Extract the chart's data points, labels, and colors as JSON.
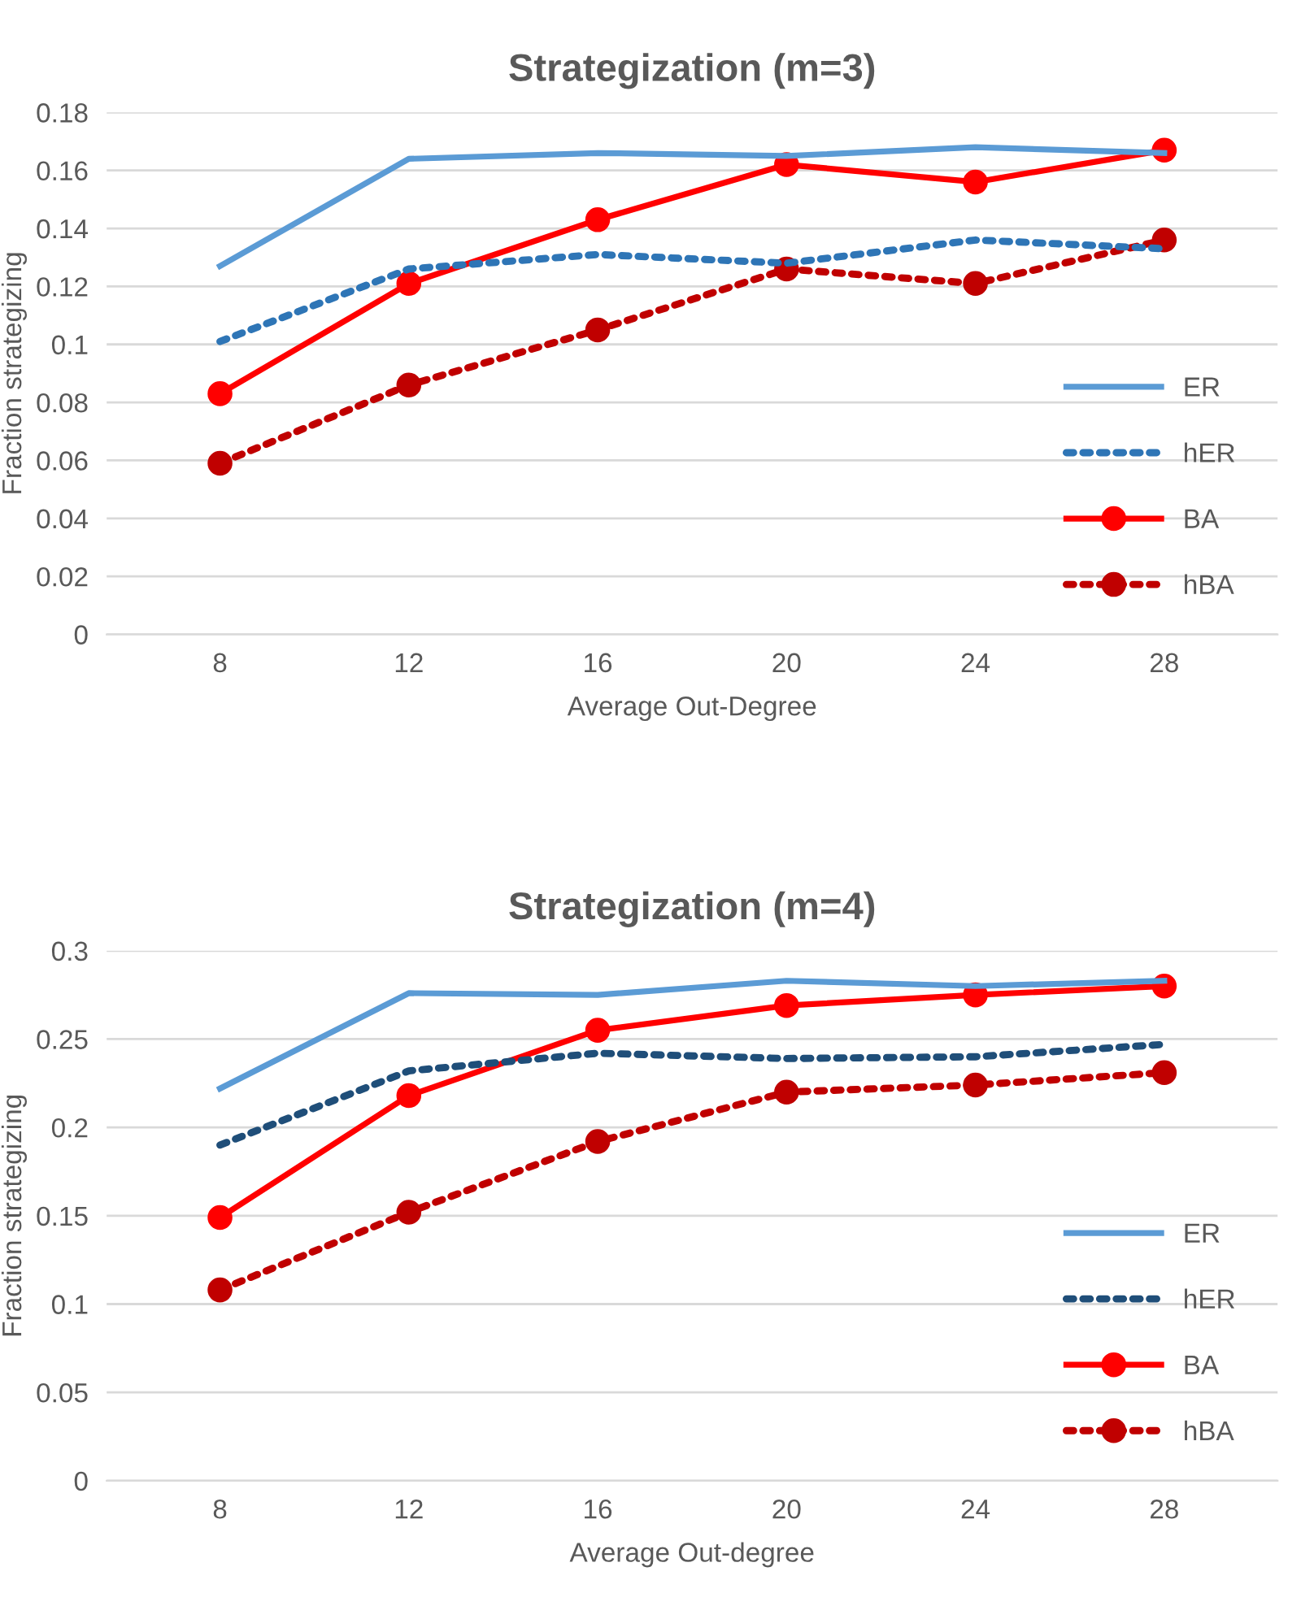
{
  "chart_data": [
    {
      "type": "line",
      "title": "Strategization (m=3)",
      "xlabel": "Average Out-Degree",
      "ylabel": "Fraction strategizing",
      "categories": [
        "8",
        "12",
        "16",
        "20",
        "24",
        "28"
      ],
      "ylim": [
        0,
        0.18
      ],
      "yticks": [
        0,
        0.02,
        0.04,
        0.06,
        0.08,
        0.1,
        0.12,
        0.14,
        0.16,
        0.18
      ],
      "grid": "y",
      "legend": "right",
      "series": [
        {
          "name": "ER",
          "color": "#5b9bd5",
          "line_style": "solid",
          "marker": "none",
          "values": [
            0.127,
            0.164,
            0.166,
            0.165,
            0.168,
            0.166
          ]
        },
        {
          "name": "hER",
          "color": "#2e75b6",
          "line_style": "dotted",
          "marker": "none",
          "values": [
            0.101,
            0.126,
            0.131,
            0.128,
            0.136,
            0.133
          ]
        },
        {
          "name": "BA",
          "color": "#ff0000",
          "line_style": "solid",
          "marker": "circle",
          "values": [
            0.083,
            0.121,
            0.143,
            0.162,
            0.156,
            0.167
          ]
        },
        {
          "name": "hBA",
          "color": "#c00000",
          "line_style": "dotted",
          "marker": "circle",
          "values": [
            0.059,
            0.086,
            0.105,
            0.126,
            0.121,
            0.136
          ]
        }
      ]
    },
    {
      "type": "line",
      "title": "Strategization (m=4)",
      "xlabel": "Average Out-degree",
      "ylabel": "Fraction strategizing",
      "categories": [
        "8",
        "12",
        "16",
        "20",
        "24",
        "28"
      ],
      "ylim": [
        0,
        0.3
      ],
      "yticks": [
        0,
        0.05,
        0.1,
        0.15,
        0.2,
        0.25,
        0.3
      ],
      "grid": "y",
      "legend": "right",
      "series": [
        {
          "name": "ER",
          "color": "#5b9bd5",
          "line_style": "solid",
          "marker": "none",
          "values": [
            0.222,
            0.276,
            0.275,
            0.283,
            0.28,
            0.283
          ]
        },
        {
          "name": "hER",
          "color": "#1f4e79",
          "line_style": "dotted",
          "marker": "none",
          "values": [
            0.19,
            0.232,
            0.242,
            0.239,
            0.24,
            0.247
          ]
        },
        {
          "name": "BA",
          "color": "#ff0000",
          "line_style": "solid",
          "marker": "circle",
          "values": [
            0.149,
            0.218,
            0.255,
            0.269,
            0.275,
            0.28
          ]
        },
        {
          "name": "hBA",
          "color": "#c00000",
          "line_style": "dotted",
          "marker": "circle",
          "values": [
            0.108,
            0.152,
            0.192,
            0.22,
            0.224,
            0.231
          ]
        }
      ]
    }
  ]
}
